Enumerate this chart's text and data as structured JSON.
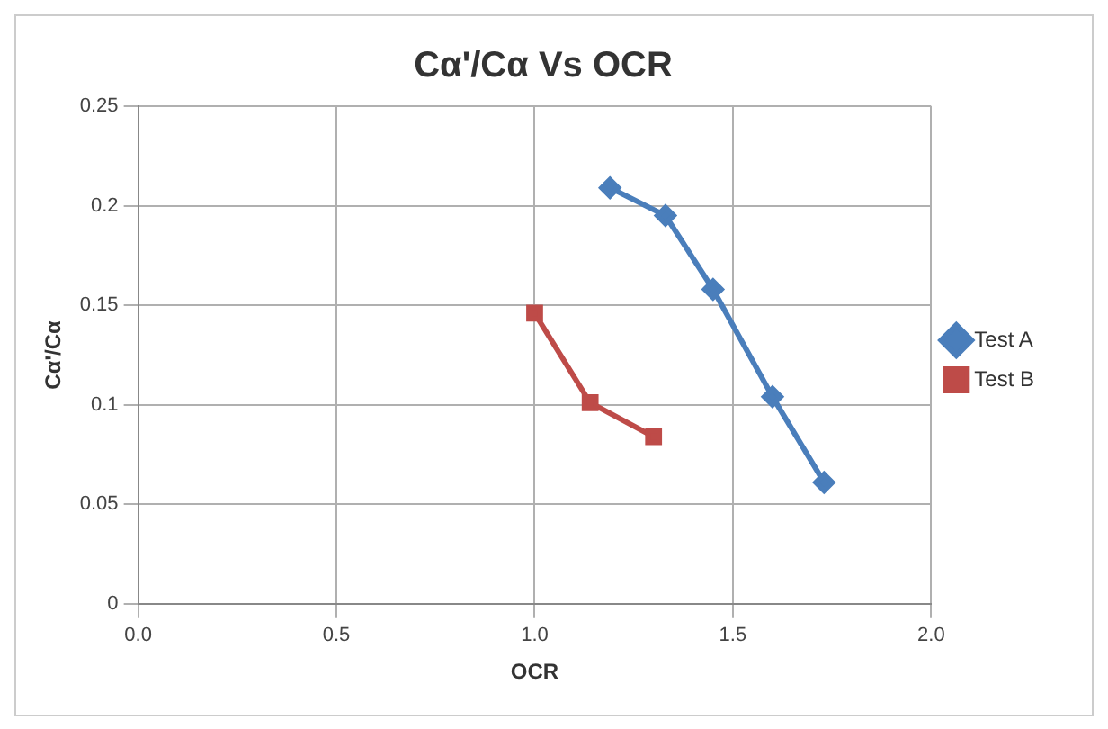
{
  "chart_data": {
    "type": "line",
    "title": "Cα'/Cα Vs OCR",
    "xlabel": "OCR",
    "ylabel": "Cα'/Cα",
    "xlim": [
      0,
      2
    ],
    "xticks": [
      {
        "value": 0,
        "label": "0.0"
      },
      {
        "value": 0.5,
        "label": "0.5"
      },
      {
        "value": 1,
        "label": "1.0"
      },
      {
        "value": 1.5,
        "label": "1.5"
      },
      {
        "value": 2,
        "label": "2.0"
      }
    ],
    "ylim": [
      0,
      0.25
    ],
    "yticks": [
      0,
      0.05,
      0.1,
      0.15,
      0.2,
      0.25
    ],
    "grid": true,
    "legend": "right",
    "line_style": "solid",
    "series": [
      {
        "name": "Test A",
        "color": "#4a7ebb",
        "marker": "diamond",
        "x": [
          1.19,
          1.33,
          1.45,
          1.6,
          1.73
        ],
        "values": [
          0.209,
          0.195,
          0.158,
          0.104,
          0.061
        ]
      },
      {
        "name": "Test B",
        "color": "#be4b48",
        "marker": "square",
        "x": [
          1.0,
          1.14,
          1.3
        ],
        "values": [
          0.146,
          0.101,
          0.084
        ]
      }
    ]
  }
}
